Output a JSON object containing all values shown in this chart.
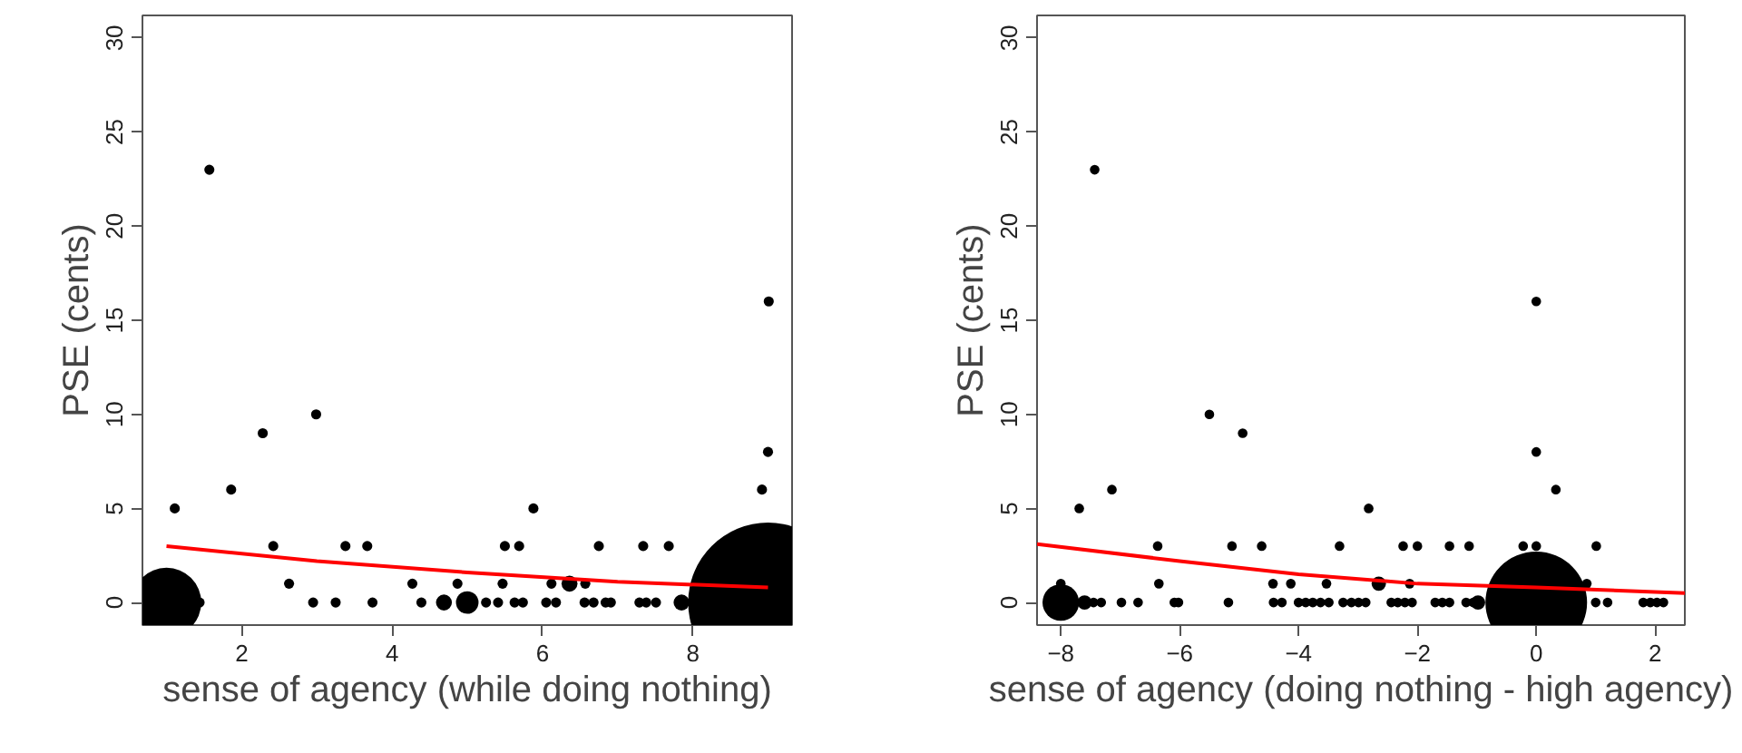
{
  "chart_data": [
    {
      "type": "bubble",
      "xlabel": "sense of agency (while doing nothing)",
      "ylabel": "PSE (cents)",
      "xlim": [
        0.68,
        9.32
      ],
      "ylim": [
        -1.2,
        31.2
      ],
      "xticks": [
        2,
        4,
        6,
        8
      ],
      "yticks": [
        0,
        5,
        10,
        15,
        20,
        25,
        30
      ],
      "grid": false,
      "series": [
        {
          "color": "#000000",
          "x": [
            1.11,
            1.86,
            2.28,
            2.99,
            2.42,
            3.38,
            3.67,
            5.5,
            5.69,
            6.75,
            7.34,
            7.68,
            5.88,
            8.92,
            9.0,
            9.01,
            1.57,
            2.63,
            4.27,
            4.87,
            5.47,
            6.12,
            6.36,
            6.57,
            1.0,
            1.44,
            2.95,
            3.25,
            3.74,
            4.39,
            4.69,
            5.0,
            5.25,
            5.41,
            5.63,
            5.74,
            6.05,
            6.18,
            6.56,
            6.68,
            6.84,
            6.91,
            7.29,
            7.38,
            7.51,
            7.85,
            9.0
          ],
          "values": [
            5,
            6,
            9,
            10,
            3,
            3,
            3,
            3,
            3,
            3,
            3,
            3,
            5,
            6,
            8,
            16,
            23,
            1,
            1,
            1,
            1,
            1,
            1,
            1,
            0,
            0,
            0,
            0,
            0,
            0,
            0,
            0,
            0,
            0,
            0,
            0,
            0,
            0,
            0,
            0,
            0,
            0,
            0,
            0,
            0,
            0,
            0
          ],
          "sizes": [
            0.004,
            0.004,
            0.004,
            0.004,
            0.004,
            0.004,
            0.004,
            0.004,
            0.004,
            0.004,
            0.004,
            0.004,
            0.004,
            0.004,
            0.004,
            0.004,
            0.004,
            0.004,
            0.004,
            0.004,
            0.004,
            0.004,
            0.01,
            0.004,
            0.19,
            0.004,
            0.004,
            0.004,
            0.004,
            0.004,
            0.01,
            0.02,
            0.004,
            0.004,
            0.004,
            0.004,
            0.004,
            0.004,
            0.004,
            0.004,
            0.004,
            0.004,
            0.004,
            0.004,
            0.004,
            0.01,
            1
          ]
        },
        {
          "type": "line",
          "color": "#ff0000",
          "x": [
            1,
            3,
            5,
            7,
            9
          ],
          "values": [
            3.0,
            2.2,
            1.6,
            1.1,
            0.8
          ]
        }
      ]
    },
    {
      "type": "bubble",
      "xlabel": "sense of agency (doing nothing - high agency)",
      "ylabel": "PSE (cents)",
      "xlim": [
        -8.4,
        2.5
      ],
      "ylim": [
        -1.2,
        31.2
      ],
      "xticks": [
        -8,
        -6,
        -4,
        -2,
        0,
        2
      ],
      "yticks": [
        0,
        5,
        10,
        15,
        20,
        25,
        30
      ],
      "grid": false,
      "series": [
        {
          "color": "#000000",
          "x": [
            -7.43,
            0.0,
            -5.5,
            -4.94,
            0.0,
            -7.69,
            -2.82,
            -7.14,
            0.33,
            -6.37,
            -5.12,
            -4.62,
            -3.31,
            -2.24,
            -2.0,
            -1.46,
            -1.13,
            -0.22,
            0.0,
            1.01,
            -8.0,
            -6.35,
            -4.43,
            -4.13,
            -3.53,
            -2.65,
            -2.13,
            0.85,
            -8.0,
            -7.6,
            -7.45,
            -7.32,
            -6.98,
            -6.7,
            -6.09,
            -6.02,
            -5.18,
            -4.42,
            -4.28,
            -4.0,
            -3.88,
            -3.76,
            -3.63,
            -3.49,
            -3.25,
            -3.11,
            -2.99,
            -2.87,
            -2.44,
            -2.33,
            -2.21,
            -2.09,
            -1.7,
            -1.58,
            -1.46,
            -1.18,
            -1.06,
            -0.98,
            0.0,
            1.0,
            1.2,
            1.8,
            1.92,
            2.03,
            2.14
          ],
          "values": [
            23,
            16,
            10,
            9,
            8,
            5,
            5,
            6,
            6,
            3,
            3,
            3,
            3,
            3,
            3,
            3,
            3,
            3,
            3,
            3,
            1,
            1,
            1,
            1,
            1,
            1,
            1,
            1,
            0,
            0,
            0,
            0,
            0,
            0,
            0,
            0,
            0,
            0,
            0,
            0,
            0,
            0,
            0,
            0,
            0,
            0,
            0,
            0,
            0,
            0,
            0,
            0,
            0,
            0,
            0,
            0,
            0,
            0,
            0,
            0,
            0,
            0,
            0,
            0,
            0
          ],
          "sizes": [
            0.009,
            0.009,
            0.009,
            0.009,
            0.009,
            0.009,
            0.009,
            0.009,
            0.009,
            0.009,
            0.009,
            0.009,
            0.009,
            0.009,
            0.009,
            0.009,
            0.009,
            0.009,
            0.009,
            0.009,
            0.009,
            0.009,
            0.009,
            0.009,
            0.009,
            0.02,
            0.009,
            0.009,
            0.13,
            0.02,
            0.009,
            0.009,
            0.009,
            0.009,
            0.009,
            0.009,
            0.009,
            0.009,
            0.009,
            0.009,
            0.009,
            0.009,
            0.009,
            0.009,
            0.009,
            0.009,
            0.009,
            0.009,
            0.009,
            0.009,
            0.009,
            0.009,
            0.009,
            0.009,
            0.009,
            0.009,
            0.009,
            0.02,
            1,
            0.009,
            0.009,
            0.009,
            0.009,
            0.009,
            0.009
          ]
        },
        {
          "type": "line",
          "color": "#ff0000",
          "x": [
            -8.4,
            -6,
            -4,
            -2,
            0,
            2.5
          ],
          "values": [
            3.1,
            2.2,
            1.5,
            1.0,
            0.8,
            0.5
          ]
        }
      ]
    }
  ]
}
